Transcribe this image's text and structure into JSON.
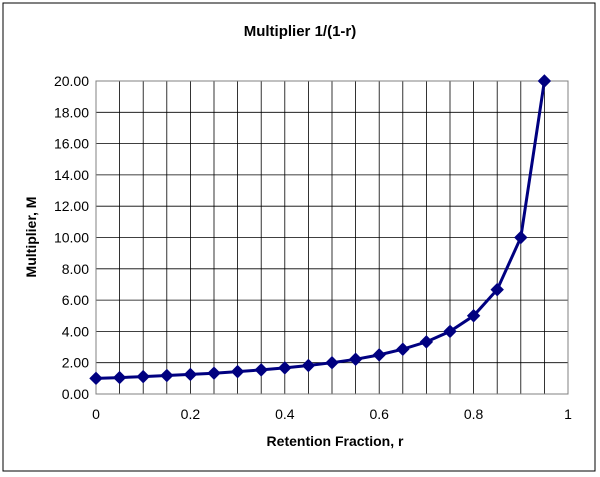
{
  "chart_data": {
    "type": "scatter",
    "title": "Multiplier 1/(1-r)",
    "xlabel": "Retention Fraction, r",
    "ylabel": "Multiplier, M",
    "xlim": [
      0,
      1
    ],
    "ylim": [
      0,
      20
    ],
    "x_ticks": [
      "0",
      "0.2",
      "0.4",
      "0.6",
      "0.8",
      "1"
    ],
    "y_ticks": [
      "0.00",
      "2.00",
      "4.00",
      "6.00",
      "8.00",
      "10.00",
      "12.00",
      "14.00",
      "16.00",
      "18.00",
      "20.00"
    ],
    "grid": true,
    "legend": "none",
    "series": [
      {
        "x": [
          0,
          0.05,
          0.1,
          0.15,
          0.2,
          0.25,
          0.3,
          0.35,
          0.4,
          0.45,
          0.5,
          0.55,
          0.6,
          0.65,
          0.7,
          0.75,
          0.8,
          0.85,
          0.9,
          0.95
        ],
        "values": [
          1.0,
          1.05,
          1.11,
          1.18,
          1.25,
          1.33,
          1.43,
          1.54,
          1.67,
          1.82,
          2.0,
          2.22,
          2.5,
          2.86,
          3.33,
          4.0,
          5.0,
          6.67,
          10.0,
          20.0
        ]
      }
    ],
    "colors": {
      "line": "#000080",
      "marker": "#000080",
      "grid": "#000000",
      "plot_border": "#808080"
    },
    "marker": "diamond"
  }
}
